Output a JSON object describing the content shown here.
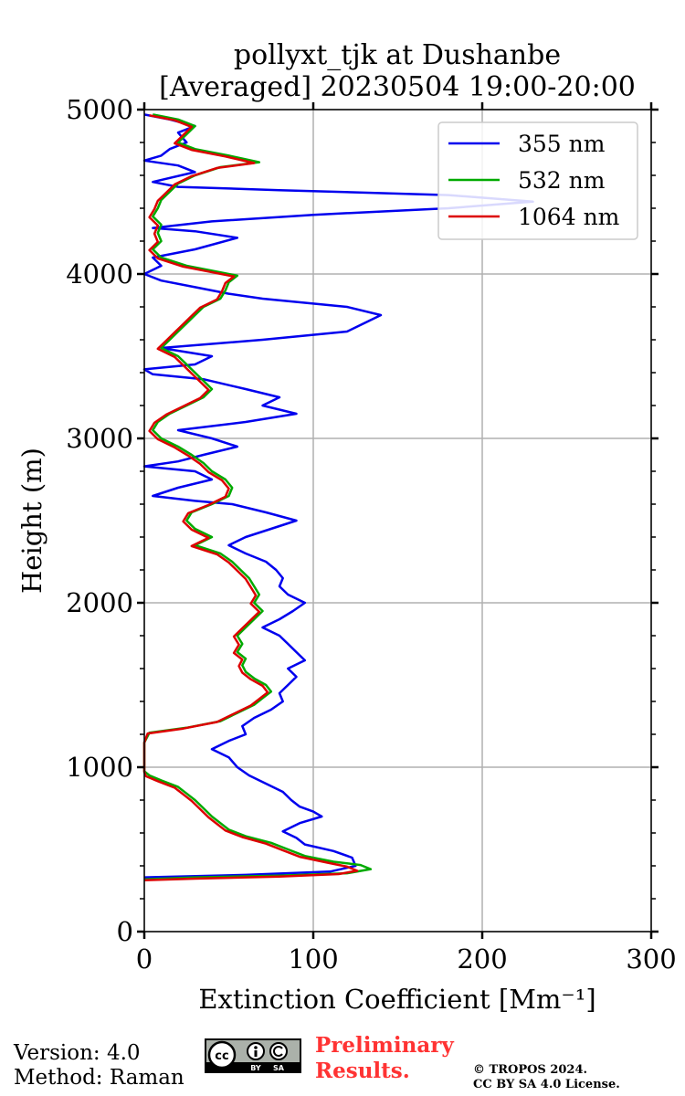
{
  "chart_data": {
    "type": "line",
    "title": "pollyxt_tjk at Dushanbe",
    "subtitle": "[Averaged] 20230504 19:00-20:00",
    "xlabel": "Extinction Coefficient [Mm⁻¹]",
    "ylabel": "Height (m)",
    "xlim": [
      0,
      300
    ],
    "ylim": [
      0,
      5000
    ],
    "xticks": [
      0,
      100,
      200,
      300
    ],
    "yticks": [
      0,
      1000,
      2000,
      3000,
      4000,
      5000
    ],
    "xtick_labels": [
      "0",
      "100",
      "200",
      "300"
    ],
    "ytick_labels": [
      "0",
      "1000",
      "2000",
      "3000",
      "4000",
      "5000"
    ],
    "grid": true,
    "legend_position": "top-right",
    "series": [
      {
        "name": "355 nm",
        "color": "#0000ee",
        "points": [
          [
            0,
            330
          ],
          [
            60,
            345
          ],
          [
            110,
            365
          ],
          [
            125,
            400
          ],
          [
            123,
            450
          ],
          [
            112,
            490
          ],
          [
            95,
            530
          ],
          [
            90,
            570
          ],
          [
            82,
            610
          ],
          [
            92,
            660
          ],
          [
            105,
            700
          ],
          [
            100,
            730
          ],
          [
            92,
            760
          ],
          [
            87,
            800
          ],
          [
            82,
            850
          ],
          [
            72,
            900
          ],
          [
            62,
            950
          ],
          [
            55,
            1000
          ],
          [
            50,
            1060
          ],
          [
            40,
            1110
          ],
          [
            50,
            1160
          ],
          [
            60,
            1200
          ],
          [
            58,
            1250
          ],
          [
            65,
            1300
          ],
          [
            75,
            1350
          ],
          [
            82,
            1400
          ],
          [
            80,
            1450
          ],
          [
            85,
            1500
          ],
          [
            90,
            1550
          ],
          [
            85,
            1600
          ],
          [
            95,
            1650
          ],
          [
            90,
            1700
          ],
          [
            85,
            1750
          ],
          [
            80,
            1800
          ],
          [
            70,
            1850
          ],
          [
            80,
            1900
          ],
          [
            88,
            1950
          ],
          [
            95,
            2000
          ],
          [
            85,
            2050
          ],
          [
            80,
            2100
          ],
          [
            82,
            2150
          ],
          [
            78,
            2200
          ],
          [
            72,
            2250
          ],
          [
            60,
            2300
          ],
          [
            50,
            2350
          ],
          [
            60,
            2400
          ],
          [
            75,
            2450
          ],
          [
            90,
            2500
          ],
          [
            72,
            2550
          ],
          [
            52,
            2600
          ],
          [
            30,
            2620
          ],
          [
            5,
            2650
          ],
          [
            20,
            2700
          ],
          [
            40,
            2750
          ],
          [
            30,
            2800
          ],
          [
            0,
            2830
          ],
          [
            20,
            2860
          ],
          [
            35,
            2900
          ],
          [
            55,
            2950
          ],
          [
            40,
            3000
          ],
          [
            20,
            3050
          ],
          [
            60,
            3100
          ],
          [
            90,
            3150
          ],
          [
            70,
            3200
          ],
          [
            80,
            3250
          ],
          [
            60,
            3300
          ],
          [
            35,
            3360
          ],
          [
            5,
            3390
          ],
          [
            0,
            3420
          ],
          [
            30,
            3450
          ],
          [
            40,
            3500
          ],
          [
            10,
            3550
          ],
          [
            70,
            3600
          ],
          [
            120,
            3650
          ],
          [
            130,
            3700
          ],
          [
            140,
            3750
          ],
          [
            120,
            3800
          ],
          [
            70,
            3850
          ],
          [
            50,
            3880
          ],
          [
            30,
            3920
          ],
          [
            10,
            3960
          ],
          [
            0,
            4000
          ],
          [
            10,
            4050
          ],
          [
            5,
            4100
          ],
          [
            30,
            4150
          ],
          [
            55,
            4220
          ],
          [
            30,
            4260
          ],
          [
            5,
            4280
          ],
          [
            40,
            4320
          ],
          [
            100,
            4360
          ],
          [
            180,
            4400
          ],
          [
            230,
            4440
          ],
          [
            180,
            4480
          ],
          [
            80,
            4510
          ],
          [
            20,
            4530
          ],
          [
            5,
            4560
          ],
          [
            30,
            4620
          ],
          [
            20,
            4660
          ],
          [
            0,
            4690
          ],
          [
            10,
            4720
          ],
          [
            15,
            4760
          ],
          [
            25,
            4800
          ],
          [
            20,
            4860
          ],
          [
            30,
            4900
          ],
          [
            15,
            4940
          ],
          [
            0,
            4970
          ]
        ]
      },
      {
        "name": "532 nm",
        "color": "#00aa00",
        "points": [
          [
            0,
            318
          ],
          [
            30,
            330
          ],
          [
            80,
            340
          ],
          [
            120,
            355
          ],
          [
            134,
            380
          ],
          [
            128,
            405
          ],
          [
            112,
            425
          ],
          [
            95,
            460
          ],
          [
            85,
            500
          ],
          [
            75,
            540
          ],
          [
            60,
            580
          ],
          [
            50,
            620
          ],
          [
            45,
            660
          ],
          [
            40,
            700
          ],
          [
            35,
            750
          ],
          [
            30,
            800
          ],
          [
            25,
            840
          ],
          [
            20,
            880
          ],
          [
            10,
            920
          ],
          [
            3,
            950
          ],
          [
            0,
            975
          ],
          [
            0,
            1150
          ],
          [
            3,
            1210
          ],
          [
            25,
            1240
          ],
          [
            45,
            1280
          ],
          [
            55,
            1330
          ],
          [
            65,
            1380
          ],
          [
            70,
            1420
          ],
          [
            75,
            1460
          ],
          [
            72,
            1500
          ],
          [
            65,
            1540
          ],
          [
            60,
            1580
          ],
          [
            58,
            1620
          ],
          [
            60,
            1660
          ],
          [
            55,
            1700
          ],
          [
            58,
            1750
          ],
          [
            55,
            1800
          ],
          [
            60,
            1850
          ],
          [
            65,
            1900
          ],
          [
            70,
            1950
          ],
          [
            65,
            2000
          ],
          [
            68,
            2050
          ],
          [
            65,
            2100
          ],
          [
            62,
            2150
          ],
          [
            57,
            2200
          ],
          [
            52,
            2250
          ],
          [
            45,
            2300
          ],
          [
            30,
            2350
          ],
          [
            40,
            2400
          ],
          [
            30,
            2450
          ],
          [
            25,
            2500
          ],
          [
            28,
            2550
          ],
          [
            40,
            2600
          ],
          [
            50,
            2650
          ],
          [
            52,
            2700
          ],
          [
            48,
            2750
          ],
          [
            40,
            2800
          ],
          [
            35,
            2850
          ],
          [
            28,
            2900
          ],
          [
            20,
            2950
          ],
          [
            10,
            3000
          ],
          [
            5,
            3050
          ],
          [
            8,
            3100
          ],
          [
            15,
            3150
          ],
          [
            25,
            3200
          ],
          [
            35,
            3250
          ],
          [
            40,
            3300
          ],
          [
            35,
            3350
          ],
          [
            30,
            3400
          ],
          [
            25,
            3450
          ],
          [
            20,
            3500
          ],
          [
            10,
            3550
          ],
          [
            15,
            3600
          ],
          [
            20,
            3650
          ],
          [
            25,
            3700
          ],
          [
            30,
            3750
          ],
          [
            35,
            3800
          ],
          [
            45,
            3850
          ],
          [
            48,
            3900
          ],
          [
            50,
            3950
          ],
          [
            55,
            3990
          ],
          [
            40,
            4020
          ],
          [
            25,
            4050
          ],
          [
            10,
            4100
          ],
          [
            5,
            4150
          ],
          [
            10,
            4200
          ],
          [
            8,
            4250
          ],
          [
            10,
            4300
          ],
          [
            5,
            4350
          ],
          [
            8,
            4400
          ],
          [
            10,
            4450
          ],
          [
            15,
            4500
          ],
          [
            20,
            4550
          ],
          [
            30,
            4600
          ],
          [
            45,
            4650
          ],
          [
            68,
            4680
          ],
          [
            50,
            4720
          ],
          [
            30,
            4760
          ],
          [
            20,
            4800
          ],
          [
            25,
            4850
          ],
          [
            30,
            4900
          ],
          [
            20,
            4940
          ],
          [
            5,
            4970
          ]
        ]
      },
      {
        "name": "1064 nm",
        "color": "#dd0000",
        "points": [
          [
            0,
            312
          ],
          [
            30,
            322
          ],
          [
            80,
            335
          ],
          [
            115,
            350
          ],
          [
            126,
            370
          ],
          [
            120,
            395
          ],
          [
            108,
            420
          ],
          [
            92,
            455
          ],
          [
            82,
            495
          ],
          [
            72,
            535
          ],
          [
            58,
            575
          ],
          [
            48,
            615
          ],
          [
            43,
            655
          ],
          [
            38,
            695
          ],
          [
            33,
            745
          ],
          [
            28,
            795
          ],
          [
            23,
            835
          ],
          [
            18,
            875
          ],
          [
            8,
            915
          ],
          [
            1,
            945
          ],
          [
            0,
            970
          ],
          [
            0,
            1150
          ],
          [
            2,
            1205
          ],
          [
            23,
            1235
          ],
          [
            43,
            1275
          ],
          [
            53,
            1325
          ],
          [
            63,
            1375
          ],
          [
            68,
            1415
          ],
          [
            73,
            1455
          ],
          [
            70,
            1495
          ],
          [
            63,
            1535
          ],
          [
            58,
            1575
          ],
          [
            56,
            1615
          ],
          [
            58,
            1655
          ],
          [
            53,
            1695
          ],
          [
            56,
            1745
          ],
          [
            53,
            1795
          ],
          [
            58,
            1845
          ],
          [
            63,
            1895
          ],
          [
            68,
            1945
          ],
          [
            63,
            1995
          ],
          [
            66,
            2045
          ],
          [
            63,
            2095
          ],
          [
            60,
            2145
          ],
          [
            55,
            2195
          ],
          [
            50,
            2245
          ],
          [
            43,
            2295
          ],
          [
            28,
            2345
          ],
          [
            38,
            2395
          ],
          [
            28,
            2445
          ],
          [
            23,
            2495
          ],
          [
            26,
            2545
          ],
          [
            38,
            2595
          ],
          [
            48,
            2645
          ],
          [
            50,
            2695
          ],
          [
            46,
            2745
          ],
          [
            38,
            2795
          ],
          [
            33,
            2845
          ],
          [
            26,
            2895
          ],
          [
            18,
            2945
          ],
          [
            8,
            2995
          ],
          [
            3,
            3045
          ],
          [
            6,
            3095
          ],
          [
            13,
            3145
          ],
          [
            23,
            3195
          ],
          [
            33,
            3245
          ],
          [
            38,
            3295
          ],
          [
            33,
            3345
          ],
          [
            28,
            3395
          ],
          [
            23,
            3445
          ],
          [
            18,
            3495
          ],
          [
            8,
            3545
          ],
          [
            13,
            3595
          ],
          [
            18,
            3645
          ],
          [
            23,
            3695
          ],
          [
            28,
            3745
          ],
          [
            33,
            3795
          ],
          [
            43,
            3845
          ],
          [
            46,
            3895
          ],
          [
            48,
            3945
          ],
          [
            53,
            3985
          ],
          [
            38,
            4015
          ],
          [
            23,
            4045
          ],
          [
            8,
            4095
          ],
          [
            3,
            4145
          ],
          [
            8,
            4195
          ],
          [
            6,
            4245
          ],
          [
            8,
            4295
          ],
          [
            3,
            4345
          ],
          [
            6,
            4395
          ],
          [
            8,
            4445
          ],
          [
            13,
            4495
          ],
          [
            18,
            4545
          ],
          [
            28,
            4595
          ],
          [
            43,
            4645
          ],
          [
            65,
            4675
          ],
          [
            48,
            4715
          ],
          [
            28,
            4755
          ],
          [
            18,
            4795
          ],
          [
            23,
            4845
          ],
          [
            28,
            4895
          ],
          [
            18,
            4935
          ],
          [
            3,
            4965
          ]
        ]
      }
    ]
  },
  "footer": {
    "version": "Version: 4.0",
    "method": "Method: Raman",
    "preliminary_line1": "Preliminary",
    "preliminary_line2": "Results.",
    "copyright_line1": "© TROPOS 2024.",
    "copyright_line2": "CC BY SA 4.0 License.",
    "license_badge_text": "cc BY SA"
  }
}
